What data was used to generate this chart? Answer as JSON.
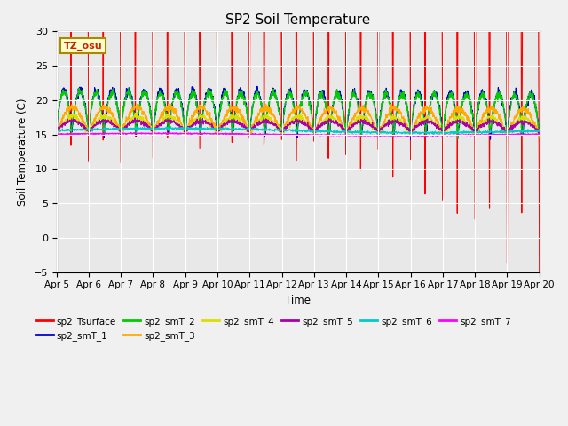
{
  "title": "SP2 Soil Temperature",
  "ylabel": "Soil Temperature (C)",
  "xlabel": "Time",
  "ylim": [
    -5,
    30
  ],
  "yticks": [
    -5,
    0,
    5,
    10,
    15,
    20,
    25,
    30
  ],
  "xtick_labels": [
    "Apr 5",
    "Apr 6",
    "Apr 7",
    "Apr 8",
    "Apr 9",
    "Apr 10",
    "Apr 11",
    "Apr 12",
    "Apr 13",
    "Apr 14",
    "Apr 15",
    "Apr 16",
    "Apr 17",
    "Apr 18",
    "Apr 19",
    "Apr 20"
  ],
  "annotation_text": "TZ_osu",
  "annotation_color": "#cc2200",
  "annotation_bg": "#ffffcc",
  "annotation_border": "#aa8800",
  "series_colors": {
    "sp2_Tsurface": "#ff0000",
    "sp2_smT_1": "#0000cc",
    "sp2_smT_2": "#00cc00",
    "sp2_smT_3": "#ffaa00",
    "sp2_smT_4": "#dddd00",
    "sp2_smT_5": "#aa00aa",
    "sp2_smT_6": "#00cccc",
    "sp2_smT_7": "#ff00ff"
  },
  "bg_color": "#e8e8e8",
  "grid_color": "#ffffff"
}
